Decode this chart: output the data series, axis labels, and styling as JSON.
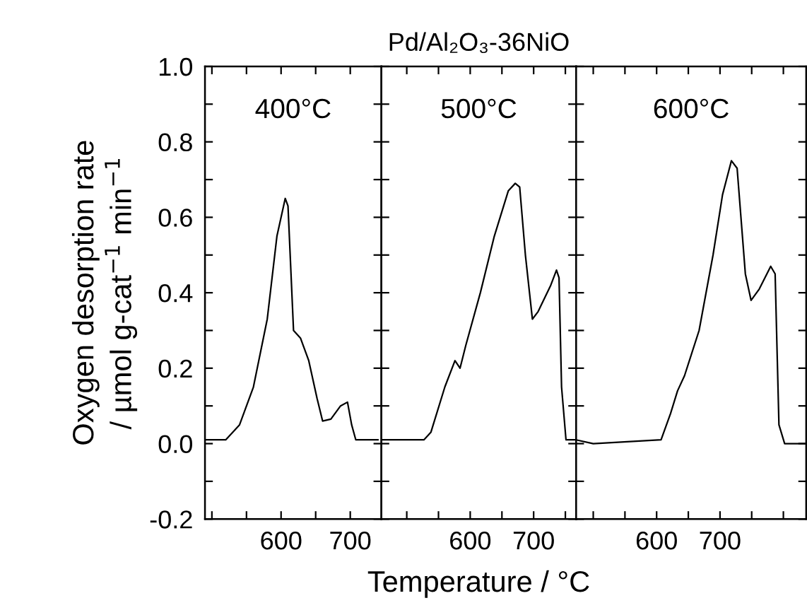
{
  "chart_data": [
    {
      "type": "line",
      "ylabel": "Oxygen desorption rate\n/ µmol g-cat$^{−1}$ min$^{−1}$",
      "annotations": [
        "400°C"
      ],
      "x": [
        490,
        520,
        540,
        560,
        580,
        594,
        606,
        610,
        618,
        628,
        640,
        652,
        660,
        672,
        686,
        696,
        702,
        708,
        724,
        740
      ],
      "series": [
        {
          "color": "#000000",
          "values": [
            0.01,
            0.01,
            0.05,
            0.15,
            0.33,
            0.55,
            0.65,
            0.63,
            0.3,
            0.28,
            0.22,
            0.12,
            0.06,
            0.065,
            0.1,
            0.11,
            0.05,
            0.01,
            0.01,
            0.01
          ]
        }
      ],
      "xlim": [
        490,
        745
      ],
      "xticks": [
        {
          "value": 500,
          "label": null
        },
        {
          "value": 550,
          "label": null
        },
        {
          "value": 600,
          "label": "600"
        },
        {
          "value": 650,
          "label": null
        },
        {
          "value": 700,
          "label": "700"
        }
      ],
      "ylim": [
        -0.2,
        1.0
      ],
      "yticks": [
        {
          "value": -0.2,
          "label": "-0.2"
        },
        {
          "value": -0.1,
          "label": null
        },
        {
          "value": 0.0,
          "label": "0.0"
        },
        {
          "value": 0.1,
          "label": null
        },
        {
          "value": 0.2,
          "label": "0.2"
        },
        {
          "value": 0.3,
          "label": null
        },
        {
          "value": 0.4,
          "label": "0.4"
        },
        {
          "value": 0.5,
          "label": null
        },
        {
          "value": 0.6,
          "label": "0.6"
        },
        {
          "value": 0.7,
          "label": null
        },
        {
          "value": 0.8,
          "label": "0.8"
        },
        {
          "value": 0.9,
          "label": null
        },
        {
          "value": 1.0,
          "label": "1.0"
        }
      ],
      "grid": false,
      "marker": "none",
      "line_style": "solid"
    },
    {
      "type": "line",
      "title": "Pd/Al₂O₃-36NiO",
      "xlabel": "Temperature / °C",
      "annotations": [
        "500°C"
      ],
      "x": [
        460,
        527,
        538,
        560,
        576,
        584,
        593,
        616,
        638,
        660,
        671,
        678,
        687,
        698,
        707,
        727,
        736,
        740,
        744,
        751,
        767
      ],
      "series": [
        {
          "color": "#000000",
          "values": [
            0.01,
            0.01,
            0.03,
            0.15,
            0.22,
            0.2,
            0.26,
            0.4,
            0.55,
            0.67,
            0.69,
            0.68,
            0.5,
            0.33,
            0.35,
            0.42,
            0.46,
            0.44,
            0.15,
            0.01,
            0.01
          ]
        }
      ],
      "xlim": [
        460,
        767
      ],
      "xticks": [
        {
          "value": 500,
          "label": null
        },
        {
          "value": 550,
          "label": null
        },
        {
          "value": 600,
          "label": "600"
        },
        {
          "value": 650,
          "label": null
        },
        {
          "value": 700,
          "label": "700"
        },
        {
          "value": 750,
          "label": null
        }
      ],
      "ylim": [
        -0.2,
        1.0
      ],
      "yticks": [
        {
          "value": -0.2,
          "label": null
        },
        {
          "value": -0.1,
          "label": null
        },
        {
          "value": 0.0,
          "label": null
        },
        {
          "value": 0.1,
          "label": null
        },
        {
          "value": 0.2,
          "label": null
        },
        {
          "value": 0.3,
          "label": null
        },
        {
          "value": 0.4,
          "label": null
        },
        {
          "value": 0.5,
          "label": null
        },
        {
          "value": 0.6,
          "label": null
        },
        {
          "value": 0.7,
          "label": null
        },
        {
          "value": 0.8,
          "label": null
        },
        {
          "value": 0.9,
          "label": null
        },
        {
          "value": 1.0,
          "label": null
        }
      ],
      "tick_labels": "x",
      "grid": false,
      "marker": "none",
      "line_style": "solid"
    },
    {
      "type": "line",
      "annotations": [
        "600°C"
      ],
      "x": [
        473,
        500,
        607,
        622,
        633,
        644,
        667,
        689,
        704,
        718,
        727,
        740,
        749,
        762,
        780,
        787,
        793,
        802,
        836
      ],
      "series": [
        {
          "color": "#000000",
          "values": [
            0.01,
            0.0,
            0.01,
            0.08,
            0.14,
            0.18,
            0.3,
            0.5,
            0.66,
            0.75,
            0.73,
            0.45,
            0.38,
            0.41,
            0.47,
            0.45,
            0.05,
            0.0,
            0.0
          ]
        }
      ],
      "xlim": [
        473,
        836
      ],
      "xticks": [
        {
          "value": 500,
          "label": null
        },
        {
          "value": 550,
          "label": null
        },
        {
          "value": 600,
          "label": "600"
        },
        {
          "value": 650,
          "label": null
        },
        {
          "value": 700,
          "label": "700"
        },
        {
          "value": 750,
          "label": null
        },
        {
          "value": 800,
          "label": null
        }
      ],
      "ylim": [
        -0.2,
        1.0
      ],
      "yticks": [
        {
          "value": -0.2,
          "label": null
        },
        {
          "value": -0.1,
          "label": null
        },
        {
          "value": 0.0,
          "label": null
        },
        {
          "value": 0.1,
          "label": null
        },
        {
          "value": 0.2,
          "label": null
        },
        {
          "value": 0.3,
          "label": null
        },
        {
          "value": 0.4,
          "label": null
        },
        {
          "value": 0.5,
          "label": null
        },
        {
          "value": 0.6,
          "label": null
        },
        {
          "value": 0.7,
          "label": null
        },
        {
          "value": 0.8,
          "label": null
        },
        {
          "value": 0.9,
          "label": null
        },
        {
          "value": 1.0,
          "label": null
        }
      ],
      "tick_labels": "x",
      "grid": false,
      "marker": "none",
      "line_style": "solid"
    }
  ]
}
